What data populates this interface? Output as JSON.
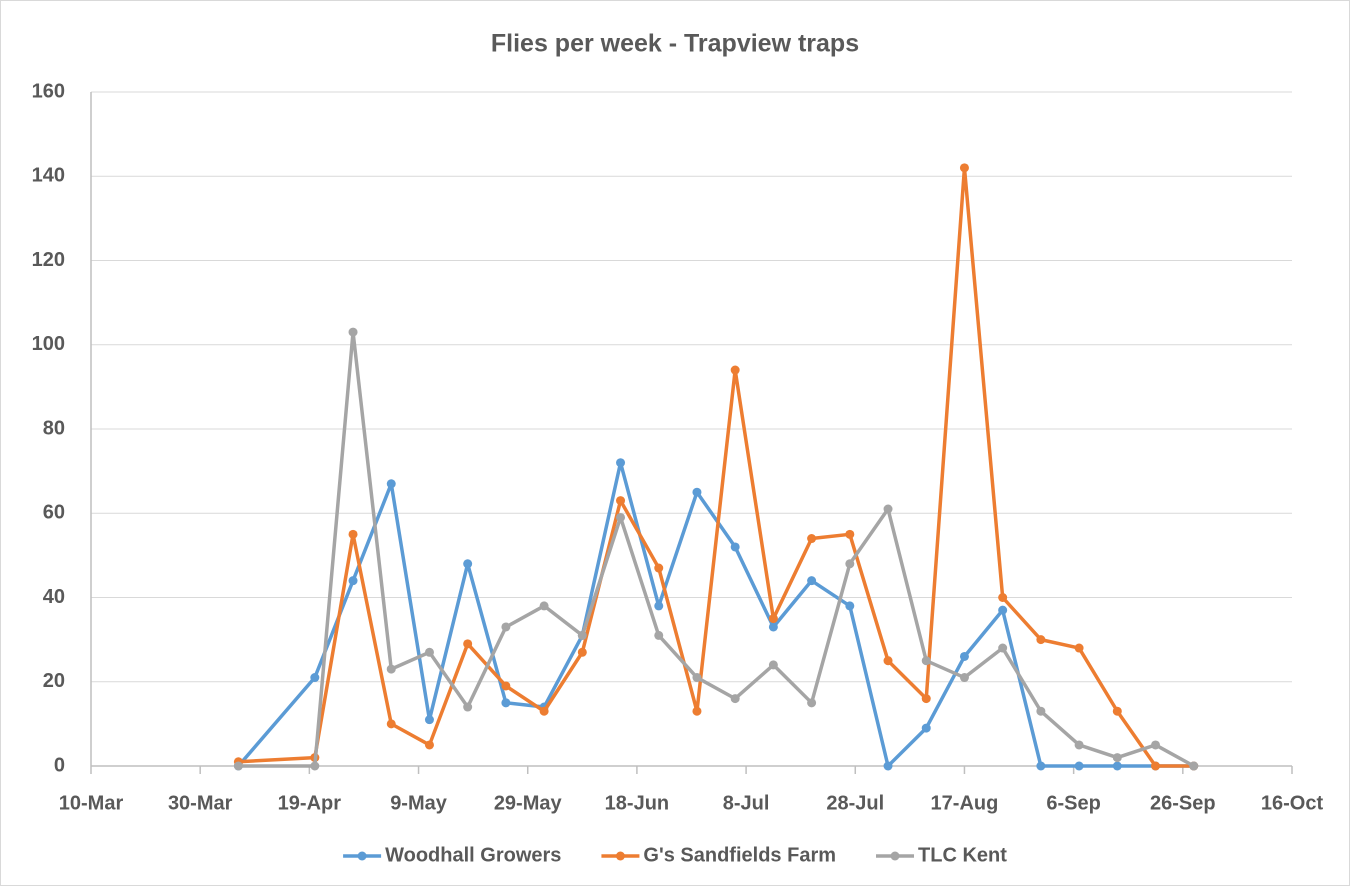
{
  "chart_data": {
    "type": "line",
    "title": "Flies per week - Trapview traps",
    "x": [
      "6-Apr",
      "20-Apr",
      "27-Apr",
      "4-May",
      "11-May",
      "18-May",
      "25-May",
      "1-Jun",
      "8-Jun",
      "15-Jun",
      "22-Jun",
      "29-Jun",
      "6-Jul",
      "13-Jul",
      "20-Jul",
      "27-Jul",
      "3-Aug",
      "10-Aug",
      "17-Aug",
      "24-Aug",
      "31-Aug",
      "7-Sep",
      "14-Sep",
      "21-Sep",
      "28-Sep"
    ],
    "series": [
      {
        "name": "Woodhall Growers",
        "color": "#5b9bd5",
        "values": [
          0,
          21,
          44,
          67,
          11,
          48,
          15,
          14,
          31,
          72,
          38,
          65,
          52,
          33,
          44,
          38,
          0,
          9,
          26,
          37,
          0,
          0,
          0,
          0,
          0
        ]
      },
      {
        "name": "G's Sandfields Farm",
        "color": "#ed7d31",
        "values": [
          1,
          2,
          55,
          10,
          5,
          29,
          19,
          13,
          27,
          63,
          47,
          13,
          94,
          35,
          54,
          55,
          25,
          16,
          142,
          40,
          30,
          28,
          13,
          0,
          0
        ]
      },
      {
        "name": "TLC Kent",
        "color": "#a5a5a5",
        "values": [
          0,
          0,
          103,
          23,
          27,
          14,
          33,
          38,
          31,
          59,
          31,
          21,
          16,
          24,
          15,
          48,
          61,
          25,
          21,
          28,
          13,
          5,
          2,
          5,
          0
        ]
      }
    ],
    "xlim": [
      "10-Mar",
      "16-Oct"
    ],
    "xticks": [
      "10-Mar",
      "30-Mar",
      "19-Apr",
      "9-May",
      "29-May",
      "18-Jun",
      "8-Jul",
      "28-Jul",
      "17-Aug",
      "6-Sep",
      "26-Sep",
      "16-Oct"
    ],
    "ylim": [
      0,
      160
    ],
    "yticks": [
      0,
      20,
      40,
      60,
      80,
      100,
      120,
      140,
      160
    ],
    "grid": true,
    "legend": "bottom"
  }
}
